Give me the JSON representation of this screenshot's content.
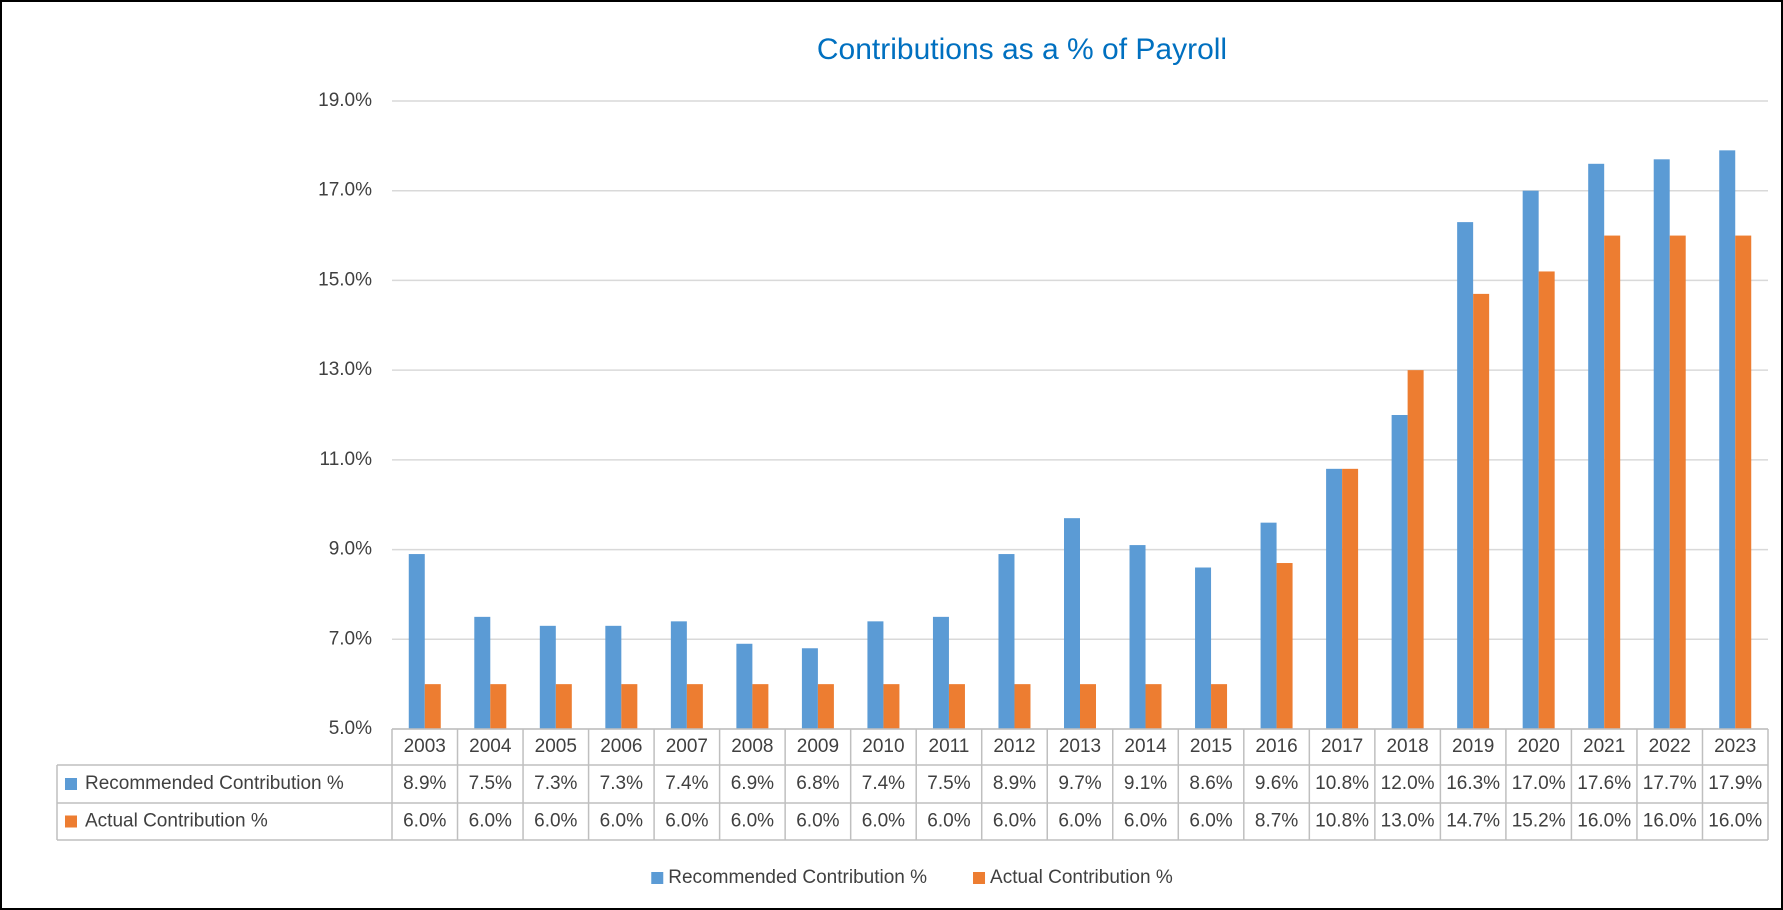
{
  "chart_data": {
    "type": "bar",
    "title": "Contributions as a % of Payroll",
    "categories": [
      "2003",
      "2004",
      "2005",
      "2006",
      "2007",
      "2008",
      "2009",
      "2010",
      "2011",
      "2012",
      "2013",
      "2014",
      "2015",
      "2016",
      "2017",
      "2018",
      "2019",
      "2020",
      "2021",
      "2022",
      "2023"
    ],
    "series": [
      {
        "name": "Recommended Contribution %",
        "color": "#5b9bd5",
        "values": [
          8.9,
          7.5,
          7.3,
          7.3,
          7.4,
          6.9,
          6.8,
          7.4,
          7.5,
          8.9,
          9.7,
          9.1,
          8.6,
          9.6,
          10.8,
          12.0,
          16.3,
          17.0,
          17.6,
          17.7,
          17.9
        ],
        "value_labels": [
          "8.9%",
          "7.5%",
          "7.3%",
          "7.3%",
          "7.4%",
          "6.9%",
          "6.8%",
          "7.4%",
          "7.5%",
          "8.9%",
          "9.7%",
          "9.1%",
          "8.6%",
          "9.6%",
          "10.8%",
          "12.0%",
          "16.3%",
          "17.0%",
          "17.6%",
          "17.7%",
          "17.9%"
        ]
      },
      {
        "name": "Actual Contribution %",
        "color": "#ed7d31",
        "values": [
          6.0,
          6.0,
          6.0,
          6.0,
          6.0,
          6.0,
          6.0,
          6.0,
          6.0,
          6.0,
          6.0,
          6.0,
          6.0,
          8.7,
          10.8,
          13.0,
          14.7,
          15.2,
          16.0,
          16.0,
          16.0
        ],
        "value_labels": [
          "6.0%",
          "6.0%",
          "6.0%",
          "6.0%",
          "6.0%",
          "6.0%",
          "6.0%",
          "6.0%",
          "6.0%",
          "6.0%",
          "6.0%",
          "6.0%",
          "6.0%",
          "8.7%",
          "10.8%",
          "13.0%",
          "14.7%",
          "15.2%",
          "16.0%",
          "16.0%",
          "16.0%"
        ]
      }
    ],
    "ylim": [
      5,
      19
    ],
    "yticks": [
      {
        "value": 5,
        "label": "5.0%"
      },
      {
        "value": 7,
        "label": "7.0%"
      },
      {
        "value": 9,
        "label": "9.0%"
      },
      {
        "value": 11,
        "label": "11.0%"
      },
      {
        "value": 13,
        "label": "13.0%"
      },
      {
        "value": 15,
        "label": "15.0%"
      },
      {
        "value": 17,
        "label": "17.0%"
      },
      {
        "value": 19,
        "label": "19.0%"
      }
    ],
    "grid": true,
    "legend": "bottom"
  }
}
